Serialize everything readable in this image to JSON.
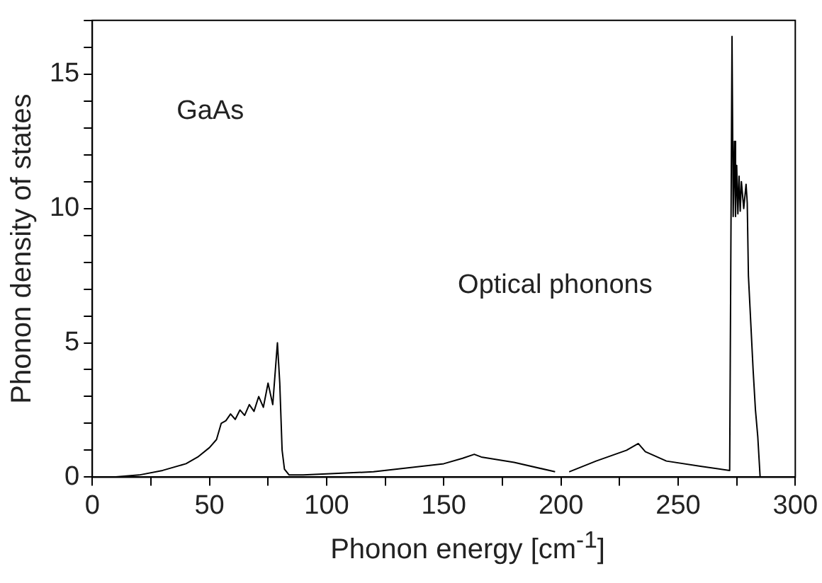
{
  "chart_data": {
    "type": "line",
    "xlabel": "Phonon energy [cm$^{-1}$]",
    "ylabel": "Phonon density of states",
    "annotations": [
      "GaAs",
      "Optical phonons"
    ],
    "series": [
      {
        "color": "#000000",
        "x": [
          0,
          10,
          20,
          30,
          40,
          45,
          50,
          53,
          55,
          57,
          59,
          61,
          63,
          65,
          67,
          69,
          71,
          73,
          75,
          77,
          79,
          80,
          81,
          82,
          84,
          90,
          120,
          150,
          158,
          163,
          166,
          180,
          197.5,
          201,
          203.5,
          215,
          228,
          233,
          236,
          245,
          260,
          272,
          273,
          273.5,
          274,
          274.5,
          275,
          275.5,
          276,
          276.5,
          277,
          278,
          279,
          279.5,
          280,
          282,
          283,
          284,
          285
        ],
        "values": [
          0,
          0.01,
          0.08,
          0.25,
          0.5,
          0.75,
          1.1,
          1.4,
          2.0,
          2.1,
          2.35,
          2.15,
          2.5,
          2.3,
          2.7,
          2.45,
          3.0,
          2.6,
          3.5,
          2.7,
          5.0,
          3.5,
          1.0,
          0.3,
          0.08,
          0.08,
          0.2,
          0.5,
          0.7,
          0.85,
          0.75,
          0.55,
          0.2,
          null,
          0.2,
          0.6,
          1.0,
          1.25,
          0.95,
          0.6,
          0.4,
          0.25,
          16.4,
          9.7,
          12.5,
          9.7,
          11.6,
          9.8,
          11.2,
          9.9,
          11.0,
          10.0,
          10.9,
          10.2,
          7.5,
          4,
          2.5,
          1.5,
          0
        ]
      }
    ],
    "xlim": [
      0,
      300
    ],
    "xticks": [
      0,
      {
        "value": 25,
        "label": null
      },
      50,
      {
        "value": 75,
        "label": null
      },
      100,
      {
        "value": 125,
        "label": null
      },
      150,
      {
        "value": 175,
        "label": null
      },
      200,
      {
        "value": 225,
        "label": null
      },
      250,
      {
        "value": 275,
        "label": null
      },
      300
    ],
    "ylim": [
      0,
      17
    ],
    "yticks": [
      0,
      {
        "value": 1,
        "label": null
      },
      {
        "value": 2,
        "label": null
      },
      {
        "value": 3,
        "label": null
      },
      {
        "value": 4,
        "label": null
      },
      5,
      {
        "value": 6,
        "label": null
      },
      {
        "value": 7,
        "label": null
      },
      {
        "value": 8,
        "label": null
      },
      {
        "value": 9,
        "label": null
      },
      10,
      {
        "value": 11,
        "label": null
      },
      {
        "value": 12,
        "label": null
      },
      {
        "value": 13,
        "label": null
      },
      {
        "value": 14,
        "label": null
      },
      15,
      {
        "value": 16,
        "label": null
      },
      {
        "value": 17,
        "label": null
      }
    ],
    "grid": false,
    "legend": false,
    "marker": "none",
    "line_style": "solid"
  }
}
